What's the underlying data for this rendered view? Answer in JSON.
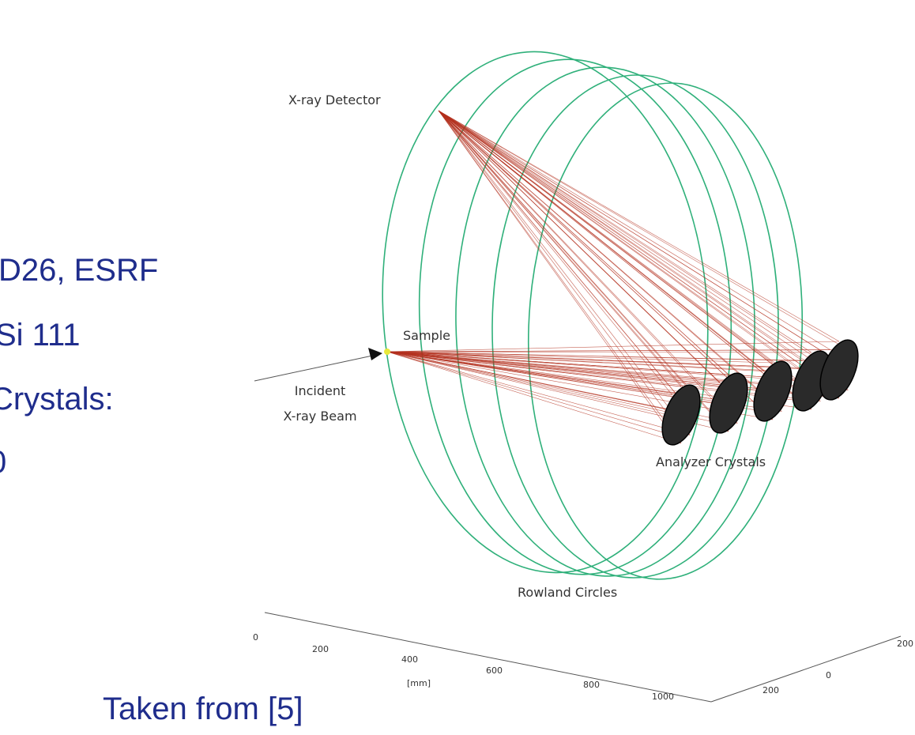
{
  "slide": {
    "lines": [
      "D26, ESRF",
      "Si 111",
      "Crystals:",
      "0"
    ],
    "source": "Taken from [5]"
  },
  "diagram": {
    "detector": "X-ray Detector",
    "sample": "Sample",
    "incident_beam": [
      "Incident",
      "X-ray Beam"
    ],
    "crystals": "Analyzer Crystals",
    "circles": "Rowland Circles",
    "axis_x_ticks": [
      "0",
      "200",
      "400",
      "600",
      "800",
      "1000"
    ],
    "axis_x_unit": "[mm]",
    "axis_y_ticks": [
      "200",
      "0",
      "200"
    ]
  }
}
